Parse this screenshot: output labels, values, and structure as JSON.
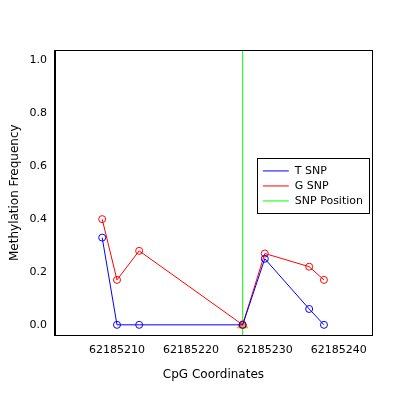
{
  "chart_data": {
    "type": "line",
    "x_label": "CpG Coordinates",
    "y_label": "Methylation Frequency",
    "xlim": [
      62185201.6,
      62185244.5
    ],
    "xticks": [
      62185210,
      62185220,
      62185230,
      62185240
    ],
    "ylim": [
      -0.04,
      1.04
    ],
    "yticks": [
      {
        "value": 0,
        "label": "0.0"
      },
      {
        "value": 0.2,
        "label": "0.2"
      },
      {
        "value": 0.4,
        "label": "0.4"
      },
      {
        "value": 0.6,
        "label": "0.6"
      },
      {
        "value": 0.8,
        "label": "0.8"
      },
      {
        "value": 1,
        "label": "1.0"
      }
    ],
    "grid": false,
    "legend": "right",
    "series": [
      {
        "name": "T SNP",
        "color": "#0000ff",
        "marker": "circle",
        "line_style": "solid",
        "x": [
          62185208,
          62185210,
          62185213,
          62185227,
          62185230,
          62185236,
          62185238
        ],
        "values": [
          0.33,
          0.0,
          0.0,
          0.0,
          0.25,
          0.06,
          0.0
        ]
      },
      {
        "name": "G SNP",
        "color": "#ff0000",
        "marker": "circle",
        "line_style": "solid",
        "x": [
          62185208,
          62185210,
          62185213,
          62185227,
          62185230,
          62185236,
          62185238
        ],
        "values": [
          0.4,
          0.17,
          0.28,
          0.0,
          0.27,
          0.22,
          0.17
        ]
      },
      {
        "name": "SNP Position",
        "color": "#00ff00",
        "type": "vline",
        "marker": "triangle",
        "x": [
          62185227
        ],
        "values": [
          0
        ]
      }
    ]
  }
}
